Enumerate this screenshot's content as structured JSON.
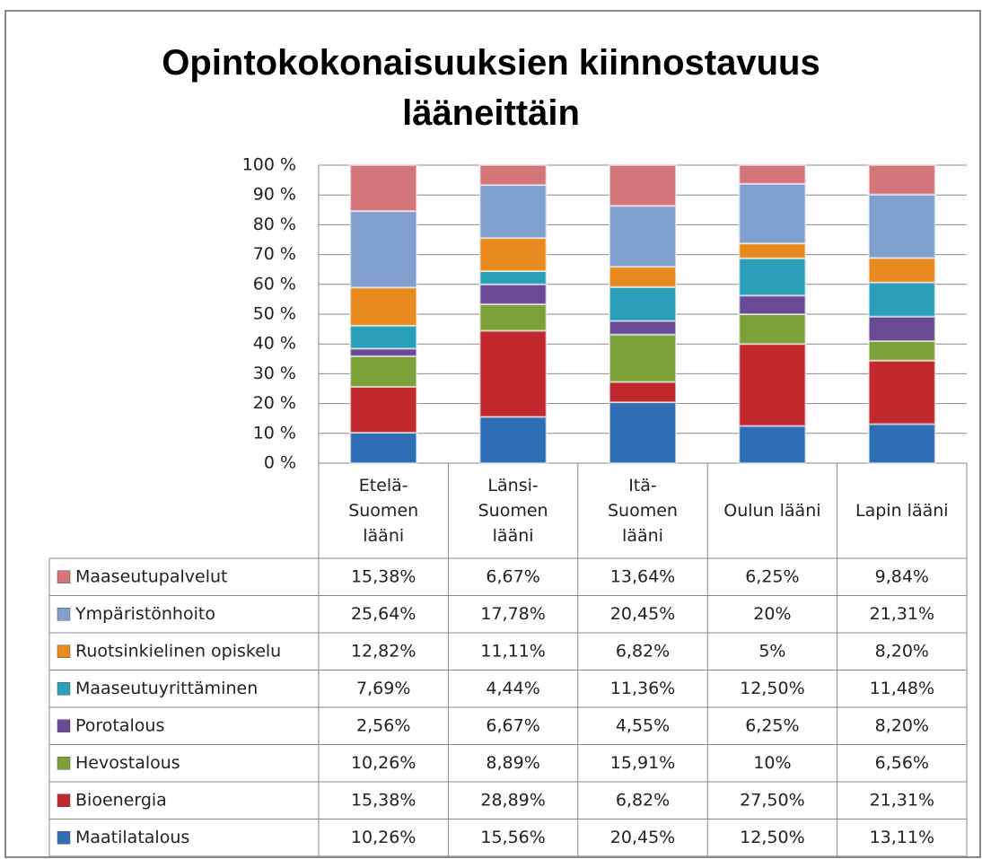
{
  "chart_data": {
    "type": "bar",
    "stacked": true,
    "title": "Opintokokonaisuuksien kiinnostavuus lääneittäin",
    "categories": [
      "Etelä-Suomen lääni",
      "Länsi-Suomen lääni",
      "Itä-Suomen lääni",
      "Oulun lääni",
      "Lapin lääni"
    ],
    "ylim": [
      0,
      100
    ],
    "yticks": [
      {
        "value": 0,
        "label": "0 %"
      },
      {
        "value": 10,
        "label": "10 %"
      },
      {
        "value": 20,
        "label": "20 %"
      },
      {
        "value": 30,
        "label": "30 %"
      },
      {
        "value": 40,
        "label": "40 %"
      },
      {
        "value": 50,
        "label": "50 %"
      },
      {
        "value": 60,
        "label": "60 %"
      },
      {
        "value": 70,
        "label": "70 %"
      },
      {
        "value": 80,
        "label": "80 %"
      },
      {
        "value": 90,
        "label": "90 %"
      },
      {
        "value": 100,
        "label": "100 %"
      }
    ],
    "grid": true,
    "series": [
      {
        "name": "Maatilatalous",
        "color": "#2f6eb5",
        "values": [
          10.26,
          15.56,
          20.45,
          12.5,
          13.11
        ],
        "value_labels": [
          "10,26%",
          "15,56%",
          "20,45%",
          "12,50%",
          "13,11%"
        ]
      },
      {
        "name": "Bioenergia",
        "color": "#c0282d",
        "values": [
          15.38,
          28.89,
          6.82,
          27.5,
          21.31
        ],
        "value_labels": [
          "15,38%",
          "28,89%",
          "6,82%",
          "27,50%",
          "21,31%"
        ]
      },
      {
        "name": "Hevostalous",
        "color": "#7da13a",
        "values": [
          10.26,
          8.89,
          15.91,
          10,
          6.56
        ],
        "value_labels": [
          "10,26%",
          "8,89%",
          "15,91%",
          "10%",
          "6,56%"
        ]
      },
      {
        "name": "Porotalous",
        "color": "#6a4a95",
        "values": [
          2.56,
          6.67,
          4.55,
          6.25,
          8.2
        ],
        "value_labels": [
          "2,56%",
          "6,67%",
          "4,55%",
          "6,25%",
          "8,20%"
        ]
      },
      {
        "name": "Maaseutuyrittäminen",
        "color": "#2aa0b8",
        "values": [
          7.69,
          4.44,
          11.36,
          12.5,
          11.48
        ],
        "value_labels": [
          "7,69%",
          "4,44%",
          "11,36%",
          "12,50%",
          "11,48%"
        ]
      },
      {
        "name": "Ruotsinkielinen opiskelu",
        "color": "#e98a1f",
        "values": [
          12.82,
          11.11,
          6.82,
          5,
          8.2
        ],
        "value_labels": [
          "12,82%",
          "11,11%",
          "6,82%",
          "5%",
          "8,20%"
        ]
      },
      {
        "name": "Ympäristönhoito",
        "color": "#7f9fcf",
        "values": [
          25.64,
          17.78,
          20.45,
          20,
          21.31
        ],
        "value_labels": [
          "25,64%",
          "17,78%",
          "20,45%",
          "20%",
          "21,31%"
        ]
      },
      {
        "name": "Maaseutupalvelut",
        "color": "#d4757a",
        "values": [
          15.38,
          6.67,
          13.64,
          6.25,
          9.84
        ],
        "value_labels": [
          "15,38%",
          "6,67%",
          "13,64%",
          "6,25%",
          "9,84%"
        ]
      }
    ]
  }
}
